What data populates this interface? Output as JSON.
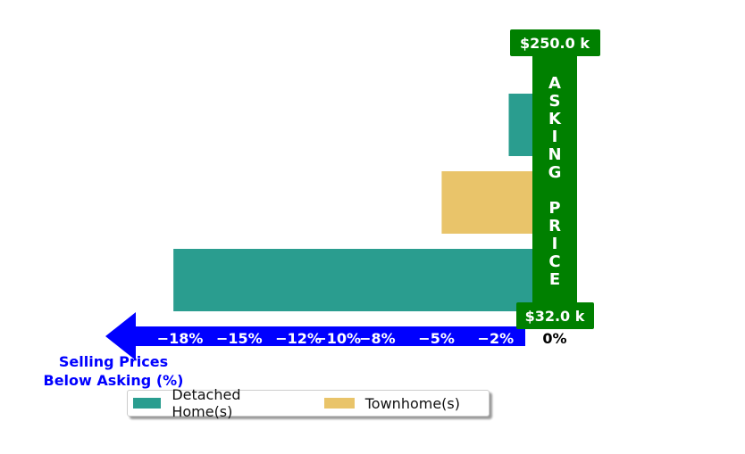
{
  "chart_data": {
    "type": "bar",
    "orientation": "horizontal",
    "series": [
      {
        "name": "Detached Home(s)",
        "color": "#2a9d8f",
        "bars": [
          -1.2,
          -18.2
        ]
      },
      {
        "name": "Townhome(s)",
        "color": "#e9c46a",
        "bars": [
          -4.6
        ]
      }
    ],
    "bars": [
      {
        "series": "Detached Home(s)",
        "value": -1.2
      },
      {
        "series": "Townhome(s)",
        "value": -4.6
      },
      {
        "series": "Detached Home(s)",
        "value": -18.2
      }
    ],
    "xlim": [
      -20,
      0
    ],
    "xticks": [
      {
        "value": -18,
        "label": "−18%"
      },
      {
        "value": -15,
        "label": "−15%"
      },
      {
        "value": -12,
        "label": "−12%"
      },
      {
        "value": -10,
        "label": "−10%"
      },
      {
        "value": -8,
        "label": "−8%"
      },
      {
        "value": -5,
        "label": "−5%"
      },
      {
        "value": -2,
        "label": "−2%"
      },
      {
        "value": 0,
        "label": "0%"
      }
    ],
    "xlabel_lines": [
      "Selling Prices",
      "Below Asking (%)"
    ],
    "asking_price_label": "A S K I N G   P R I C E",
    "asking_price_letters": [
      "A",
      "S",
      "K",
      "I",
      "N",
      "G",
      "",
      "P",
      "R",
      "I",
      "C",
      "E"
    ],
    "price_top": "$250.0 k",
    "price_bottom": "$32.0 k",
    "legend_placement": "bottom-center",
    "grid": false,
    "colors": {
      "axis_arrow": "#0000ff",
      "asking_bar": "#008000",
      "label_text": "#0000ff"
    }
  }
}
